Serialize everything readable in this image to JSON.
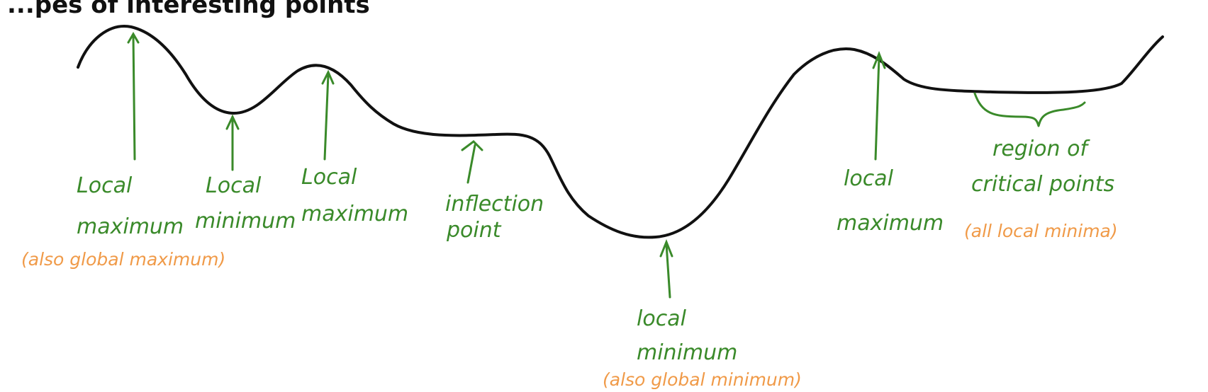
{
  "heading": "...pes of interesting points",
  "colors": {
    "curve": "#111111",
    "annotation": "#3a8a2a",
    "note": "#f09a48"
  },
  "annotations": [
    {
      "id": "local-max-1",
      "lines": [
        "Local",
        "maximum"
      ],
      "note": "(also global maximum)"
    },
    {
      "id": "local-min-1",
      "lines": [
        "Local",
        "minimum"
      ],
      "note": ""
    },
    {
      "id": "local-max-2",
      "lines": [
        "Local",
        "maximum"
      ],
      "note": ""
    },
    {
      "id": "inflection",
      "lines": [
        "inflection",
        "point"
      ],
      "note": ""
    },
    {
      "id": "local-min-2",
      "lines": [
        "local",
        "minimum"
      ],
      "note": "(also global minimum)"
    },
    {
      "id": "local-max-3",
      "lines": [
        "local",
        "maximum"
      ],
      "note": ""
    },
    {
      "id": "critical-region",
      "lines": [
        "region of",
        "critical points"
      ],
      "note": "(all local minima)"
    }
  ]
}
